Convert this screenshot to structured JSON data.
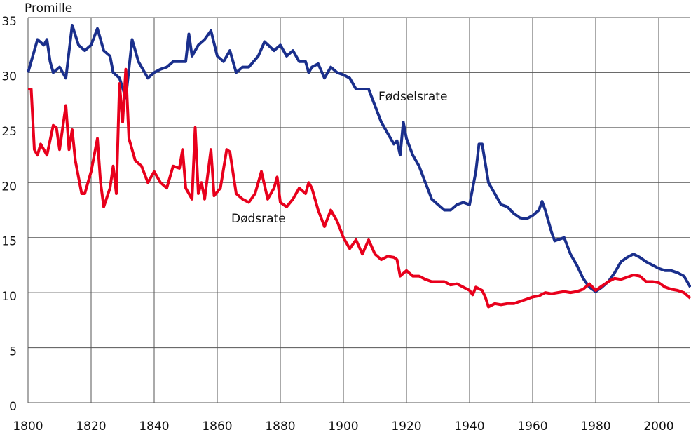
{
  "chart_data": {
    "type": "line",
    "title": "Promille",
    "xlim": [
      1800,
      2010
    ],
    "ylim": [
      0,
      35
    ],
    "xticks": [
      1800,
      1820,
      1840,
      1860,
      1880,
      1900,
      1920,
      1940,
      1960,
      1980,
      2000
    ],
    "yticks": [
      0,
      5,
      10,
      15,
      20,
      25,
      30,
      35
    ],
    "grid": true,
    "series": [
      {
        "name": "Fødselsrate",
        "color": "#1a2f8c",
        "x": [
          1800,
          1803,
          1805,
          1806,
          1807,
          1808,
          1810,
          1812,
          1814,
          1816,
          1818,
          1820,
          1822,
          1824,
          1826,
          1827,
          1829,
          1831,
          1833,
          1835,
          1837,
          1838,
          1840,
          1842,
          1844,
          1846,
          1848,
          1850,
          1851,
          1852,
          1854,
          1856,
          1858,
          1860,
          1862,
          1864,
          1866,
          1868,
          1870,
          1873,
          1875,
          1878,
          1880,
          1882,
          1884,
          1886,
          1888,
          1889,
          1890,
          1892,
          1894,
          1896,
          1898,
          1900,
          1902,
          1904,
          1906,
          1908,
          1910,
          1912,
          1914,
          1916,
          1917,
          1918,
          1919,
          1920,
          1922,
          1924,
          1926,
          1928,
          1930,
          1932,
          1934,
          1936,
          1938,
          1940,
          1942,
          1943,
          1944,
          1946,
          1948,
          1950,
          1952,
          1954,
          1956,
          1958,
          1960,
          1962,
          1963,
          1964,
          1966,
          1967,
          1970,
          1972,
          1974,
          1976,
          1978,
          1980,
          1982,
          1984,
          1986,
          1988,
          1990,
          1992,
          1994,
          1996,
          1998,
          2000,
          2002,
          2004,
          2006,
          2008,
          2010
        ],
        "values": [
          30,
          33,
          32.5,
          33,
          31,
          30,
          30.5,
          29.5,
          34.3,
          32.5,
          32,
          32.5,
          34,
          32,
          31.5,
          30,
          29.5,
          27.7,
          33,
          31,
          30,
          29.5,
          30,
          30.3,
          30.5,
          31,
          31,
          31,
          33.5,
          31.5,
          32.5,
          33,
          33.8,
          31.5,
          31,
          32,
          30,
          30.5,
          30.5,
          31.5,
          32.8,
          32,
          32.5,
          31.5,
          32,
          31,
          31,
          30,
          30.5,
          30.8,
          29.5,
          30.5,
          30,
          29.8,
          29.5,
          28.5,
          28.5,
          28.5,
          27,
          25.5,
          24.5,
          23.5,
          23.8,
          22.5,
          25.5,
          24,
          22.5,
          21.5,
          20,
          18.5,
          18,
          17.5,
          17.5,
          18,
          18.2,
          18,
          21,
          23.5,
          23.5,
          20,
          19,
          18,
          17.8,
          17.2,
          16.8,
          16.7,
          17,
          17.5,
          18.3,
          17.5,
          15.5,
          14.7,
          15,
          13.5,
          12.5,
          11.3,
          10.5,
          10.1,
          10.5,
          11,
          11.8,
          12.8,
          13.2,
          13.5,
          13.2,
          12.8,
          12.5,
          12.2,
          12,
          12,
          11.8,
          11.5,
          10.5
        ]
      },
      {
        "name": "Dødsrate",
        "color": "#e8001c",
        "x": [
          1800,
          1801,
          1802,
          1803,
          1804,
          1806,
          1808,
          1809,
          1810,
          1812,
          1813,
          1814,
          1815,
          1817,
          1818,
          1820,
          1822,
          1823,
          1824,
          1826,
          1827,
          1828,
          1829,
          1830,
          1831,
          1832,
          1834,
          1836,
          1838,
          1840,
          1842,
          1844,
          1846,
          1848,
          1849,
          1850,
          1852,
          1853,
          1854,
          1855,
          1856,
          1858,
          1859,
          1861,
          1863,
          1864,
          1866,
          1868,
          1870,
          1872,
          1874,
          1876,
          1878,
          1879,
          1880,
          1882,
          1884,
          1886,
          1888,
          1889,
          1890,
          1892,
          1894,
          1896,
          1898,
          1900,
          1902,
          1904,
          1906,
          1908,
          1910,
          1912,
          1914,
          1916,
          1917,
          1918,
          1920,
          1922,
          1924,
          1926,
          1928,
          1930,
          1932,
          1934,
          1936,
          1938,
          1940,
          1941,
          1942,
          1944,
          1945,
          1946,
          1948,
          1950,
          1952,
          1954,
          1956,
          1958,
          1960,
          1962,
          1964,
          1966,
          1968,
          1970,
          1972,
          1974,
          1976,
          1978,
          1980,
          1982,
          1984,
          1986,
          1988,
          1990,
          1992,
          1994,
          1996,
          1998,
          2000,
          2002,
          2004,
          2006,
          2008,
          2010
        ],
        "values": [
          28.5,
          28.5,
          23,
          22.5,
          23.5,
          22.5,
          25.2,
          25,
          23,
          27,
          23,
          24.8,
          22,
          19,
          19,
          21,
          24,
          20,
          17.8,
          19.5,
          21.5,
          19,
          29,
          25.5,
          30.3,
          24,
          22,
          21.5,
          20,
          21,
          20,
          19.5,
          21.5,
          21.3,
          23,
          19.5,
          18.5,
          25,
          19,
          20,
          18.5,
          23,
          18.8,
          19.5,
          23,
          22.8,
          19,
          18.5,
          18.2,
          19,
          21,
          18.5,
          19.5,
          20.5,
          18.2,
          17.8,
          18.5,
          19.5,
          19,
          20,
          19.5,
          17.5,
          16,
          17.5,
          16.5,
          15,
          14,
          14.8,
          13.5,
          14.8,
          13.5,
          13,
          13.3,
          13.2,
          13,
          11.5,
          12,
          11.5,
          11.5,
          11.2,
          11,
          11,
          11,
          10.7,
          10.8,
          10.5,
          10.2,
          9.8,
          10.5,
          10.2,
          9.6,
          8.7,
          9,
          8.9,
          9,
          9,
          9.2,
          9.4,
          9.6,
          9.7,
          10,
          9.9,
          10,
          10.1,
          10,
          10.1,
          10.3,
          10.8,
          10.2,
          10.6,
          11,
          11.3,
          11.2,
          11.4,
          11.6,
          11.5,
          11,
          11,
          10.9,
          10.5,
          10.3,
          10.2,
          10,
          9.5
        ]
      }
    ]
  }
}
